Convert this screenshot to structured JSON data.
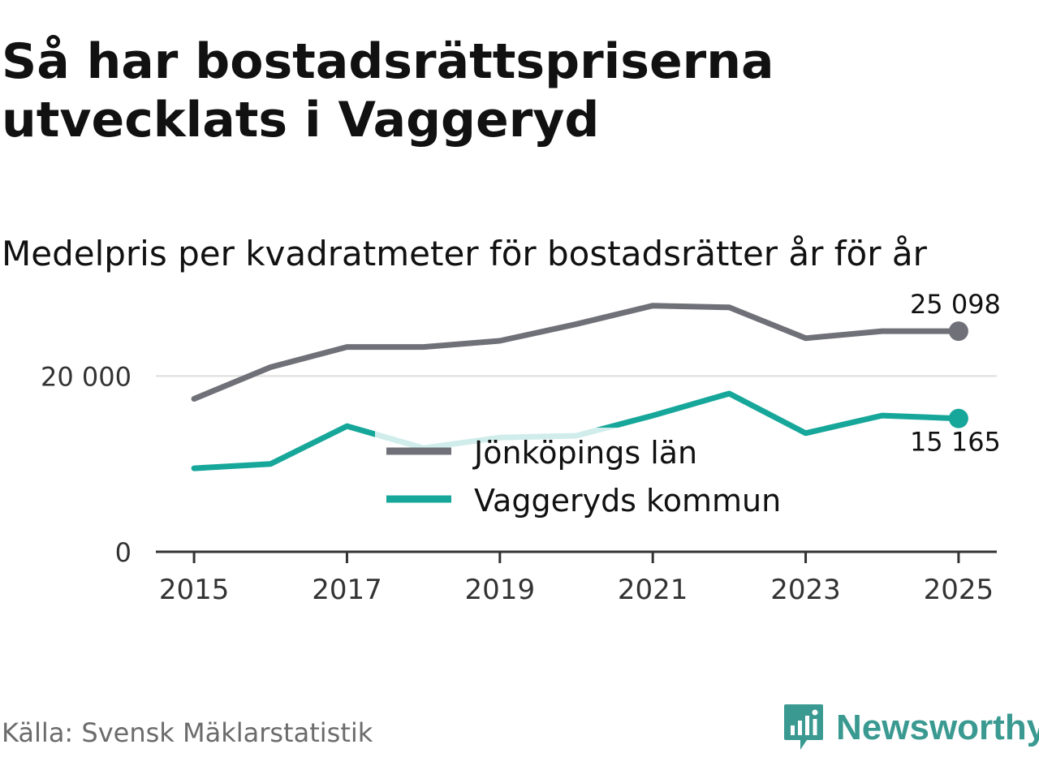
{
  "header": {
    "title": "Så har bostadsrättspriserna utvecklats i Vaggeryd",
    "subtitle": "Medelpris per kvadratmeter för bostadsrätter år för år"
  },
  "footer": {
    "source": "Källa: Svensk Mäklarstatistik",
    "brand": "Newsworthy"
  },
  "colors": {
    "county": "#707078",
    "municipality": "#16a79a",
    "municipality_faded": "#c6ece8",
    "grid": "#dddddd",
    "axis": "#333333",
    "brand": "#3a9a91"
  },
  "chart_data": {
    "type": "line",
    "title": "Så har bostadsrättspriserna utvecklats i Vaggeryd",
    "subtitle": "Medelpris per kvadratmeter för bostadsrätter år för år",
    "xlabel": "",
    "ylabel": "",
    "x": [
      2015,
      2016,
      2017,
      2018,
      2019,
      2020,
      2021,
      2022,
      2023,
      2024,
      2025
    ],
    "xticks": [
      2015,
      2017,
      2019,
      2021,
      2023,
      2025
    ],
    "xtick_labels": [
      "2015",
      "2017",
      "2019",
      "2021",
      "2023",
      "2025"
    ],
    "yticks": [
      0,
      20000
    ],
    "ytick_labels": [
      "0",
      "20 000"
    ],
    "ylim": [
      0,
      30000
    ],
    "xlim": [
      2014.5,
      2025.5
    ],
    "grid": true,
    "legend_position": "center",
    "series": [
      {
        "name": "Jönköpings län",
        "values": [
          17400,
          21000,
          23300,
          23300,
          24000,
          25900,
          28000,
          27800,
          24300,
          25100,
          25098
        ],
        "end_label": "25 098"
      },
      {
        "name": "Vaggeryds kommun",
        "values": [
          9500,
          10000,
          14300,
          11800,
          13000,
          13200,
          15500,
          18000,
          13500,
          15500,
          15165
        ],
        "end_label": "15 165"
      }
    ]
  }
}
